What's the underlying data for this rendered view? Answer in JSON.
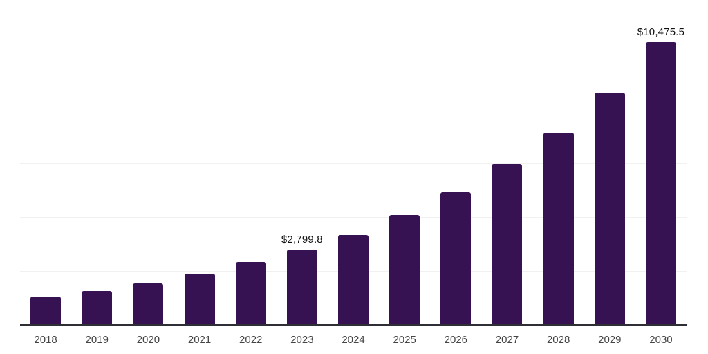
{
  "chart_data": {
    "type": "bar",
    "title": "",
    "xlabel": "",
    "ylabel": "",
    "categories": [
      "2018",
      "2019",
      "2020",
      "2021",
      "2022",
      "2023",
      "2024",
      "2025",
      "2026",
      "2027",
      "2028",
      "2029",
      "2030"
    ],
    "values": [
      1050,
      1255,
      1535,
      1890,
      2325,
      2799.8,
      3320,
      4060,
      4905,
      5955,
      7105,
      8610,
      10475.5
    ],
    "value_labels": [
      "",
      "",
      "",
      "",
      "",
      "$2,799.8",
      "",
      "",
      "",
      "",
      "",
      "",
      "$10,475.5"
    ],
    "ylim": [
      0,
      12000
    ],
    "gridline_step": 2000,
    "grid": "horizontal-only",
    "legend": "none",
    "y_axis_tick_labels": "none",
    "colors": {
      "bar": "#361253",
      "gridline": "#f1f1f1",
      "axis_line": "#2e2e36",
      "tick_label": "#454545",
      "value_label": "#0f0f0f",
      "background": "#ffffff"
    }
  }
}
